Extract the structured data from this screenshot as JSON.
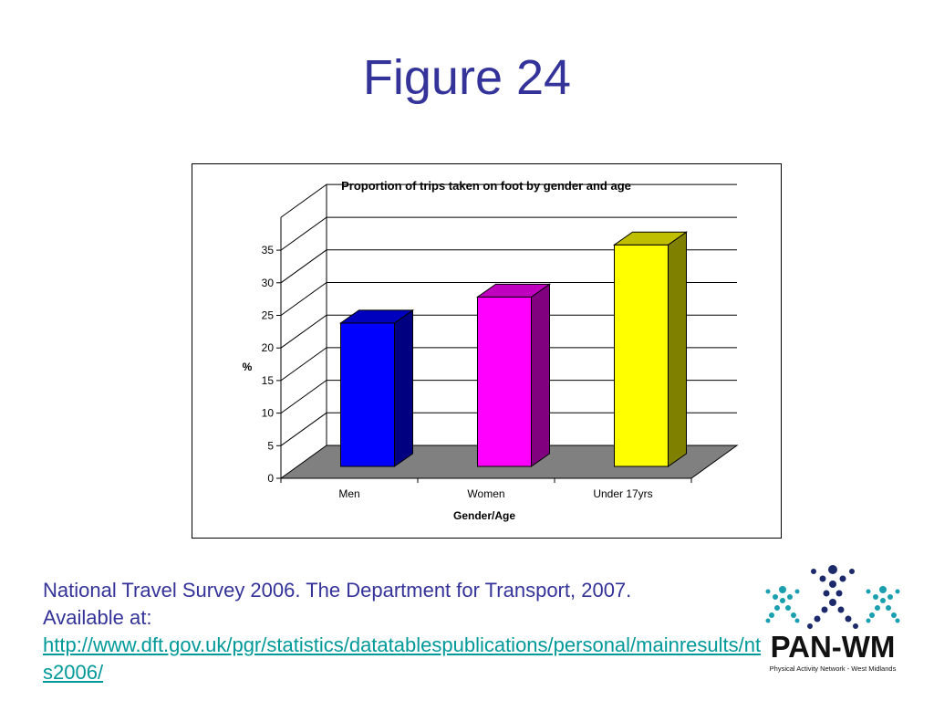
{
  "slide": {
    "title": "Figure 24"
  },
  "chart_data": {
    "type": "bar",
    "title": "Proportion of trips taken on foot by gender and age",
    "xlabel": "Gender/Age",
    "ylabel": "%",
    "categories": [
      "Men",
      "Women",
      "Under 17yrs"
    ],
    "values": [
      22,
      26,
      34
    ],
    "ylim": [
      0,
      35
    ],
    "yticks": [
      0,
      5,
      10,
      15,
      20,
      25,
      30,
      35
    ],
    "bar_colors": [
      "#0000FF",
      "#FF00FF",
      "#FFFF00"
    ],
    "grid": true,
    "legend": "none",
    "style": "3d-column"
  },
  "source": {
    "line1": "National Travel Survey 2006. The Department for Transport, 2007.",
    "line2": "Available at:",
    "url": "http://www.dft.gov.uk/pgr/statistics/datatablespublications/personal/mainresults/nts2006/"
  },
  "logo": {
    "name": "PAN-WM",
    "subtitle": "Physical Activity Network - West Midlands"
  },
  "colors": {
    "title": "#333399",
    "source_text": "#333399",
    "link": "#009999",
    "floor": "#808080"
  }
}
